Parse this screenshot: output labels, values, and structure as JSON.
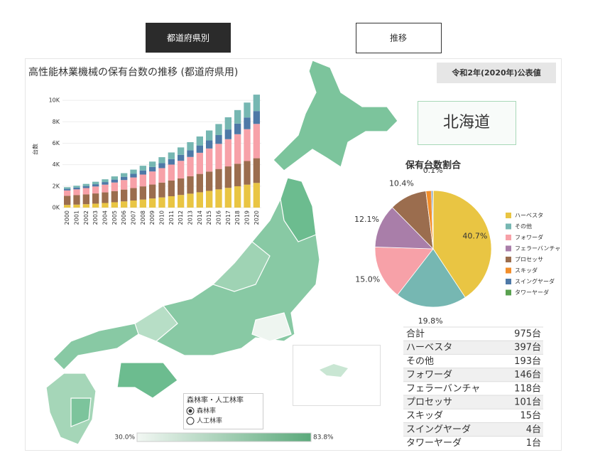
{
  "tabs": [
    "都道府県別",
    "推移"
  ],
  "badge": "令和2年(2020年)公表値",
  "region": "北海道",
  "chart_data": [
    {
      "type": "stacked-bar",
      "title": "高性能林業機械の保有台数の推移 (都道府県用)",
      "y_label": "台数",
      "categories": [
        "2000",
        "2001",
        "2002",
        "2003",
        "2004",
        "2005",
        "2006",
        "2007",
        "2008",
        "2009",
        "2010",
        "2011",
        "2012",
        "2013",
        "2014",
        "2015",
        "2016",
        "2017",
        "2018",
        "2019",
        "2020"
      ],
      "series": [
        {
          "name": "ハーベスタ",
          "color": "#e9c543",
          "values": [
            250,
            280,
            320,
            370,
            430,
            500,
            580,
            660,
            750,
            850,
            950,
            1060,
            1180,
            1300,
            1430,
            1560,
            1700,
            1840,
            1990,
            2140,
            2300
          ]
        },
        {
          "name": "プロセッサ",
          "color": "#9b6d4e",
          "values": [
            850,
            880,
            910,
            950,
            990,
            1040,
            1100,
            1160,
            1230,
            1300,
            1380,
            1460,
            1540,
            1620,
            1710,
            1800,
            1900,
            2000,
            2100,
            2200,
            2300
          ]
        },
        {
          "name": "フォワーダ",
          "color": "#f7a1a8",
          "values": [
            500,
            540,
            590,
            650,
            720,
            800,
            890,
            990,
            1100,
            1220,
            1350,
            1490,
            1640,
            1800,
            1970,
            2150,
            2340,
            2540,
            2750,
            2970,
            3200
          ]
        },
        {
          "name": "スイングヤーダ",
          "color": "#4e79a7",
          "values": [
            150,
            170,
            190,
            210,
            240,
            270,
            300,
            340,
            380,
            420,
            460,
            510,
            560,
            620,
            680,
            750,
            820,
            900,
            990,
            1090,
            1200
          ]
        },
        {
          "name": "その他",
          "color": "#76b7b2",
          "values": [
            150,
            170,
            200,
            230,
            260,
            300,
            340,
            390,
            440,
            500,
            560,
            620,
            690,
            760,
            840,
            930,
            1030,
            1140,
            1260,
            1390,
            1530
          ]
        }
      ],
      "ylim": [
        0,
        11000
      ],
      "yticks": [
        {
          "value": 0,
          "label": "0K"
        },
        {
          "value": 2000,
          "label": "2K"
        },
        {
          "value": 4000,
          "label": "4K"
        },
        {
          "value": 6000,
          "label": "6K"
        },
        {
          "value": 8000,
          "label": "8K"
        },
        {
          "value": 10000,
          "label": "10K"
        }
      ]
    },
    {
      "type": "pie",
      "title": "保有台数割合",
      "categories": [
        "ハーベスタ",
        "その他",
        "フォワーダ",
        "フェラーバンチャ",
        "プロセッサ",
        "スキッダ",
        "スイングヤーダ",
        "タワーヤーダ"
      ],
      "colors": [
        "#e9c543",
        "#76b7b2",
        "#f7a1a8",
        "#a97ea9",
        "#9b6d4e",
        "#f28e2b",
        "#4e79a7",
        "#59a14f"
      ],
      "values": [
        40.7,
        19.8,
        15.0,
        12.1,
        10.4,
        1.5,
        0.4,
        0.1
      ],
      "value_labels": [
        "40.7%",
        "19.8%",
        "15.0%",
        "12.1%",
        "10.4%",
        null,
        null,
        "0.1%"
      ]
    }
  ],
  "table": {
    "rows": [
      [
        "合計",
        "975台"
      ],
      [
        "ハーベスタ",
        "397台"
      ],
      [
        "その他",
        "193台"
      ],
      [
        "フォワーダ",
        "146台"
      ],
      [
        "フェラーバンチャ",
        "118台"
      ],
      [
        "プロセッサ",
        "101台"
      ],
      [
        "スキッダ",
        "15台"
      ],
      [
        "スイングヤーダ",
        "4台"
      ],
      [
        "タワーヤーダ",
        "1台"
      ]
    ]
  },
  "map": {
    "legend_title": "森林率・人工林率",
    "options": [
      "森林率",
      "人工林率"
    ],
    "scale_min": "30.0%",
    "scale_max": "83.8%"
  }
}
